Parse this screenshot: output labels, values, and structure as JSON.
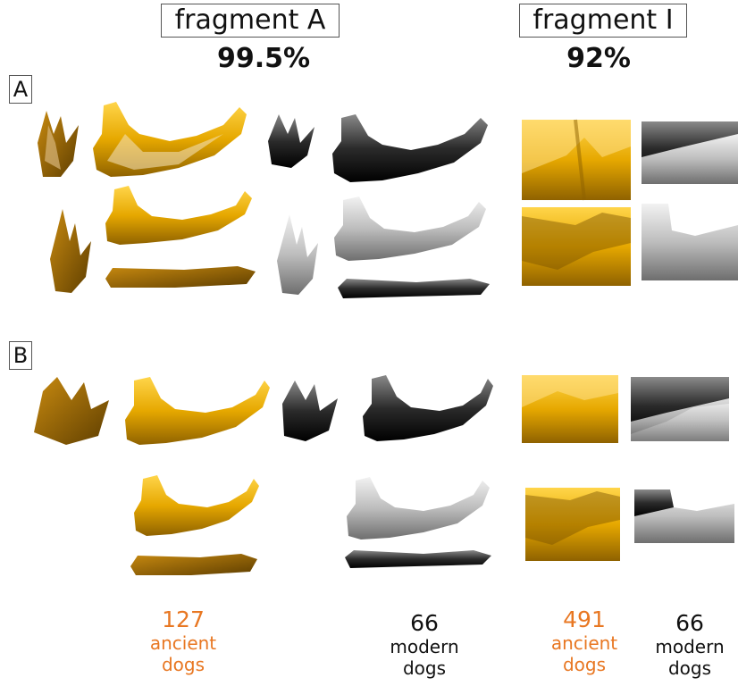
{
  "headers": {
    "fragment_a": {
      "title": "fragment A",
      "percent": "99.5%"
    },
    "fragment_i": {
      "title": "fragment I",
      "percent": "92%"
    }
  },
  "panels": {
    "a": "A",
    "b": "B"
  },
  "counts": {
    "ancient_a": {
      "number": "127",
      "line1": "ancient",
      "line2": "dogs"
    },
    "modern_a": {
      "number": "66",
      "line1": "modern",
      "line2": "dogs"
    },
    "ancient_i": {
      "number": "491",
      "line1": "ancient",
      "line2": "dogs"
    },
    "modern_i": {
      "number": "66",
      "line1": "modern",
      "line2": "dogs"
    }
  },
  "colors": {
    "ancient": "#E87722",
    "modern": "#111111",
    "gold": "#E6A800",
    "gold_dark": "#9A6A00",
    "grey": "#B8B8B8",
    "grey_dark": "#3A3A3A"
  }
}
